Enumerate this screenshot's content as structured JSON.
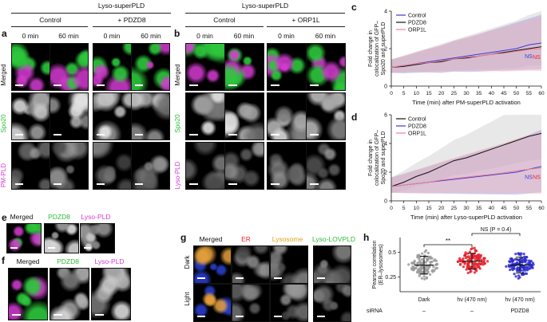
{
  "labels": {
    "a": "a",
    "b": "b",
    "c": "c",
    "d": "d",
    "e": "e",
    "f": "f",
    "g": "g",
    "h": "h"
  },
  "panel_a": {
    "title": "Lyso-superPLD",
    "groups": [
      "Control",
      "+ PDZD8"
    ],
    "times": [
      "0 min",
      "60 min",
      "0 min",
      "60 min"
    ],
    "rows": [
      "Merged",
      "Spo20",
      "PM-PLD"
    ]
  },
  "panel_b": {
    "title": "Lyso-superPLD",
    "groups": [
      "Control",
      "+ ORP1L"
    ],
    "times": [
      "0 min",
      "60 min",
      "0 min",
      "60 min"
    ],
    "rows": [
      "Merged",
      "Spo20",
      "Lyso-PLD"
    ]
  },
  "panel_e": {
    "cols": [
      "Merged",
      "PDZD8",
      "Lyso-PLD"
    ]
  },
  "panel_f": {
    "cols": [
      "Merged",
      "PDZD8",
      "Lyso-PLD"
    ]
  },
  "panel_g": {
    "cols": [
      "Merged",
      "ER",
      "Lysosome",
      "Lyso-LOVPLD"
    ],
    "rows": [
      "Dark",
      "Light"
    ]
  },
  "colors": {
    "green": "#2dbb3a",
    "magenta": "#d63bd3",
    "blue": "#3a3ad8",
    "red": "#e8202a",
    "orange": "#e0a020",
    "black": "#111111",
    "pink": "#f08090"
  },
  "chart_data": [
    {
      "type": "line",
      "panel": "c",
      "ylabel": "Fold change in colocalization of GFP–Spo20 and superPLD",
      "xlabel": "Time (min) after PM-superPLD activation",
      "xlim": [
        0,
        60
      ],
      "ylim": [
        0,
        4
      ],
      "xticks": [
        "0",
        "5",
        "10",
        "15",
        "20",
        "25",
        "30",
        "35",
        "40",
        "45",
        "50",
        "55",
        "60"
      ],
      "yticks": [
        "0",
        "2",
        "4"
      ],
      "legend": [
        "Control",
        "PDZD8",
        "ORP1L"
      ],
      "annotations": [
        "NS",
        "NS"
      ],
      "x": [
        0,
        5,
        10,
        15,
        20,
        25,
        30,
        35,
        40,
        45,
        50,
        55,
        60
      ],
      "series": [
        {
          "name": "Control",
          "color": "#3a3ad8",
          "values": [
            1.0,
            1.1,
            1.2,
            1.3,
            1.4,
            1.5,
            1.6,
            1.7,
            1.8,
            1.9,
            2.0,
            2.2,
            2.3
          ]
        },
        {
          "name": "PDZD8",
          "color": "#111111",
          "values": [
            1.0,
            1.05,
            1.15,
            1.25,
            1.3,
            1.45,
            1.5,
            1.6,
            1.7,
            1.8,
            1.9,
            2.0,
            2.1
          ]
        },
        {
          "name": "ORP1L",
          "color": "#f08090",
          "values": [
            1.0,
            1.1,
            1.2,
            1.25,
            1.35,
            1.45,
            1.55,
            1.6,
            1.7,
            1.75,
            1.85,
            1.95,
            2.0
          ]
        }
      ]
    },
    {
      "type": "line",
      "panel": "d",
      "ylabel": "Fold change in colocalization of GFP–Spo20 and superPLD",
      "xlabel": "Time (min) after Lyso-superPLD activation",
      "xlim": [
        0,
        60
      ],
      "ylim": [
        0,
        6
      ],
      "xticks": [
        "0",
        "5",
        "10",
        "15",
        "20",
        "25",
        "30",
        "35",
        "40",
        "45",
        "50",
        "55",
        "60"
      ],
      "yticks": [
        "0",
        "2",
        "4",
        "6"
      ],
      "legend": [
        "Control",
        "PDZD8",
        "ORP1L"
      ],
      "annotations": [
        "NS",
        "NS"
      ],
      "x": [
        0,
        5,
        10,
        15,
        20,
        25,
        30,
        35,
        40,
        45,
        50,
        55,
        60
      ],
      "series": [
        {
          "name": "Control",
          "color": "#111111",
          "values": [
            1.0,
            1.3,
            1.7,
            2.0,
            2.4,
            2.8,
            3.0,
            3.3,
            3.6,
            3.9,
            4.2,
            4.5,
            4.7
          ]
        },
        {
          "name": "PDZD8",
          "color": "#3a3ad8",
          "values": [
            1.0,
            1.1,
            1.2,
            1.3,
            1.4,
            1.5,
            1.6,
            1.7,
            1.8,
            1.9,
            2.0,
            2.2,
            2.4
          ]
        },
        {
          "name": "ORP1L",
          "color": "#f08090",
          "values": [
            1.0,
            1.1,
            1.2,
            1.3,
            1.45,
            1.55,
            1.65,
            1.75,
            1.85,
            1.95,
            2.1,
            2.2,
            2.3
          ]
        }
      ]
    },
    {
      "type": "scatter",
      "panel": "h",
      "ylabel": "Pearson correlation (ER–lysosomes)",
      "ylim": [
        0.1,
        0.65
      ],
      "yticks": [
        "0.25",
        "0.5"
      ],
      "categories": [
        "Dark",
        "hν (470 nm)",
        "hν (470 nm)"
      ],
      "sirna_label": "siRNA",
      "sirna": [
        "–",
        "–",
        "PDZD8"
      ],
      "annotations": [
        "NS (P = 0.4)",
        "**"
      ],
      "series": [
        {
          "name": "Dark",
          "color": "#9a9a9a",
          "mean": 0.37,
          "sd": 0.09
        },
        {
          "name": "hν (470 nm)",
          "color": "#e8202a",
          "mean": 0.41,
          "sd": 0.08
        },
        {
          "name": "hν (470 nm) PDZD8",
          "color": "#2c2ccc",
          "mean": 0.37,
          "sd": 0.08
        }
      ]
    }
  ]
}
